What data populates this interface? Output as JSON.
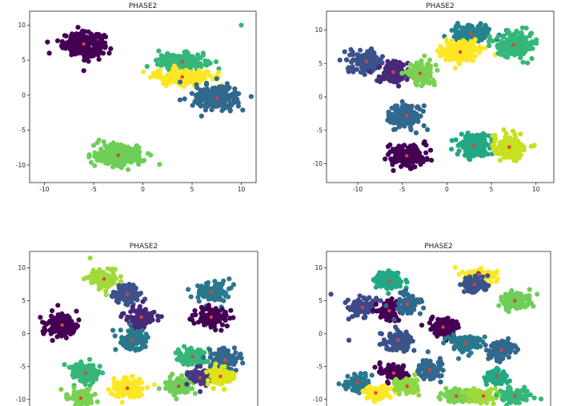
{
  "figure": {
    "colormap": "viridis",
    "background": "#ffffff",
    "centroid_color": "#e0403c"
  },
  "chart_data": [
    {
      "type": "scatter",
      "title": "PHASE2",
      "xlim": [
        -11.5,
        11.5
      ],
      "ylim": [
        -12.5,
        12.0
      ],
      "xticks": [
        -10,
        -5,
        0,
        5,
        10
      ],
      "yticks": [
        -10,
        -5,
        0,
        5,
        10
      ],
      "clusters": [
        {
          "center": [
            -6.0,
            7.3
          ],
          "spread": [
            1.7,
            1.3
          ],
          "color": "#440154",
          "n": 260
        },
        {
          "center": [
            4.0,
            4.8
          ],
          "spread": [
            2.0,
            0.9
          ],
          "color": "#35b779",
          "n": 180
        },
        {
          "center": [
            4.0,
            2.6
          ],
          "spread": [
            2.2,
            0.9
          ],
          "color": "#fde725",
          "n": 200
        },
        {
          "center": [
            7.5,
            -0.4
          ],
          "spread": [
            1.9,
            1.4
          ],
          "color": "#31688e",
          "n": 230
        },
        {
          "center": [
            -2.5,
            -8.6
          ],
          "spread": [
            2.0,
            1.2
          ],
          "color": "#6ece58",
          "n": 240
        }
      ],
      "outliers": [
        [
          10.0,
          10.0
        ],
        [
          -9.5,
          6.0
        ],
        [
          -6.0,
          3.5
        ],
        [
          11.0,
          -0.2
        ]
      ]
    },
    {
      "type": "scatter",
      "title": "PHASE2",
      "xlim": [
        -13.5,
        12.0
      ],
      "ylim": [
        -12.8,
        12.8
      ],
      "xticks": [
        -10,
        -5,
        0,
        5,
        10
      ],
      "yticks": [
        -10,
        -5,
        0,
        5,
        10
      ],
      "clusters": [
        {
          "center": [
            -9.0,
            5.3
          ],
          "spread": [
            1.5,
            1.3
          ],
          "color": "#3b528b",
          "n": 140
        },
        {
          "center": [
            -6.0,
            3.7
          ],
          "spread": [
            1.4,
            1.3
          ],
          "color": "#482878",
          "n": 140
        },
        {
          "center": [
            -3.0,
            3.5
          ],
          "spread": [
            1.3,
            1.3
          ],
          "color": "#7ad151",
          "n": 140
        },
        {
          "center": [
            2.7,
            9.5
          ],
          "spread": [
            1.7,
            1.1
          ],
          "color": "#26828e",
          "n": 150
        },
        {
          "center": [
            1.5,
            6.7
          ],
          "spread": [
            1.7,
            1.2
          ],
          "color": "#fde725",
          "n": 160
        },
        {
          "center": [
            7.5,
            7.8
          ],
          "spread": [
            1.8,
            1.5
          ],
          "color": "#35b779",
          "n": 160
        },
        {
          "center": [
            -4.5,
            -2.8
          ],
          "spread": [
            1.5,
            1.4
          ],
          "color": "#31688e",
          "n": 170
        },
        {
          "center": [
            -4.5,
            -8.8
          ],
          "spread": [
            1.6,
            1.3
          ],
          "color": "#440154",
          "n": 200
        },
        {
          "center": [
            3.0,
            -7.3
          ],
          "spread": [
            1.5,
            1.5
          ],
          "color": "#22a884",
          "n": 170
        },
        {
          "center": [
            7.0,
            -7.5
          ],
          "spread": [
            1.5,
            1.5
          ],
          "color": "#c8e020",
          "n": 170
        }
      ],
      "outliers": [
        [
          -6.0,
          -11.0
        ],
        [
          9.5,
          9.5
        ],
        [
          -12.0,
          5.5
        ]
      ]
    },
    {
      "type": "scatter",
      "title": "PHASE2",
      "xlim": [
        -12.0,
        12.5
      ],
      "ylim": [
        -11.0,
        12.5
      ],
      "xticks": [],
      "yticks": [
        -10,
        -5,
        0,
        5,
        10
      ],
      "clusters": [
        {
          "center": [
            -4.0,
            8.3
          ],
          "spread": [
            1.3,
            1.2
          ],
          "color": "#a0da39",
          "n": 110
        },
        {
          "center": [
            -1.5,
            6.0
          ],
          "spread": [
            1.2,
            1.2
          ],
          "color": "#3b528b",
          "n": 110
        },
        {
          "center": [
            -8.5,
            1.3
          ],
          "spread": [
            1.4,
            1.4
          ],
          "color": "#440154",
          "n": 150
        },
        {
          "center": [
            0.0,
            2.5
          ],
          "spread": [
            1.2,
            1.2
          ],
          "color": "#482878",
          "n": 110
        },
        {
          "center": [
            -1.0,
            -1.0
          ],
          "spread": [
            1.3,
            1.2
          ],
          "color": "#2a788e",
          "n": 110
        },
        {
          "center": [
            7.5,
            6.3
          ],
          "spread": [
            1.4,
            1.2
          ],
          "color": "#2a788e",
          "n": 110
        },
        {
          "center": [
            7.5,
            2.5
          ],
          "spread": [
            1.4,
            1.2
          ],
          "color": "#440154",
          "n": 110
        },
        {
          "center": [
            -6.0,
            -6.0
          ],
          "spread": [
            1.3,
            1.2
          ],
          "color": "#35b779",
          "n": 110
        },
        {
          "center": [
            -6.5,
            -9.8
          ],
          "spread": [
            1.3,
            1.0
          ],
          "color": "#7ad151",
          "n": 100
        },
        {
          "center": [
            -1.5,
            -8.3
          ],
          "spread": [
            1.4,
            1.2
          ],
          "color": "#fde725",
          "n": 130
        },
        {
          "center": [
            5.5,
            -3.5
          ],
          "spread": [
            1.2,
            1.2
          ],
          "color": "#35b779",
          "n": 110
        },
        {
          "center": [
            9.0,
            -4.0
          ],
          "spread": [
            1.2,
            1.2
          ],
          "color": "#31688e",
          "n": 110
        },
        {
          "center": [
            4.0,
            -8.0
          ],
          "spread": [
            1.2,
            1.2
          ],
          "color": "#6ece58",
          "n": 100
        },
        {
          "center": [
            6.3,
            -6.7
          ],
          "spread": [
            1.0,
            1.0
          ],
          "color": "#443983",
          "n": 80
        },
        {
          "center": [
            8.5,
            -6.5
          ],
          "spread": [
            1.2,
            1.1
          ],
          "color": "#dde318",
          "n": 100
        }
      ],
      "outliers": [
        [
          -10.5,
          0.0
        ],
        [
          -5.5,
          11.5
        ]
      ]
    },
    {
      "type": "scatter",
      "title": "PHASE2",
      "xlim": [
        -12.5,
        12.5
      ],
      "ylim": [
        -11.0,
        12.5
      ],
      "xticks": [],
      "yticks": [
        -10,
        -5,
        0,
        5,
        10
      ],
      "clusters": [
        {
          "center": [
            -5.5,
            8.0
          ],
          "spread": [
            1.3,
            1.2
          ],
          "color": "#22a884",
          "n": 110
        },
        {
          "center": [
            4.5,
            9.0
          ],
          "spread": [
            1.5,
            0.8
          ],
          "color": "#fde725",
          "n": 100
        },
        {
          "center": [
            4.0,
            7.5
          ],
          "spread": [
            1.3,
            1.0
          ],
          "color": "#3b528b",
          "n": 100
        },
        {
          "center": [
            8.5,
            5.0
          ],
          "spread": [
            1.3,
            1.2
          ],
          "color": "#6ece58",
          "n": 110
        },
        {
          "center": [
            -8.5,
            4.0
          ],
          "spread": [
            1.3,
            1.2
          ],
          "color": "#3e4989",
          "n": 110
        },
        {
          "center": [
            -5.5,
            3.5
          ],
          "spread": [
            1.0,
            1.1
          ],
          "color": "#440154",
          "n": 90
        },
        {
          "center": [
            -3.5,
            4.5
          ],
          "spread": [
            1.2,
            1.2
          ],
          "color": "#31688e",
          "n": 100
        },
        {
          "center": [
            0.5,
            1.0
          ],
          "spread": [
            1.2,
            1.2
          ],
          "color": "#440154",
          "n": 100
        },
        {
          "center": [
            -4.5,
            -1.0
          ],
          "spread": [
            1.4,
            1.2
          ],
          "color": "#3b528b",
          "n": 110
        },
        {
          "center": [
            3.0,
            -1.5
          ],
          "spread": [
            1.4,
            1.2
          ],
          "color": "#2a788e",
          "n": 110
        },
        {
          "center": [
            7.0,
            -2.5
          ],
          "spread": [
            1.3,
            1.2
          ],
          "color": "#31688e",
          "n": 100
        },
        {
          "center": [
            -1.0,
            -5.5
          ],
          "spread": [
            1.2,
            1.2
          ],
          "color": "#31688e",
          "n": 100
        },
        {
          "center": [
            -5.0,
            -6.0
          ],
          "spread": [
            1.2,
            1.0
          ],
          "color": "#440154",
          "n": 100
        },
        {
          "center": [
            -9.0,
            -7.5
          ],
          "spread": [
            1.1,
            1.1
          ],
          "color": "#2a788e",
          "n": 90
        },
        {
          "center": [
            -7.0,
            -9.0
          ],
          "spread": [
            1.2,
            0.9
          ],
          "color": "#fde725",
          "n": 90
        },
        {
          "center": [
            -3.5,
            -8.0
          ],
          "spread": [
            1.1,
            1.0
          ],
          "color": "#8fd744",
          "n": 90
        },
        {
          "center": [
            2.0,
            -9.5
          ],
          "spread": [
            1.3,
            0.9
          ],
          "color": "#7ad151",
          "n": 90
        },
        {
          "center": [
            5.0,
            -9.5
          ],
          "spread": [
            1.3,
            0.9
          ],
          "color": "#a0da39",
          "n": 90
        },
        {
          "center": [
            8.5,
            -9.5
          ],
          "spread": [
            1.3,
            0.9
          ],
          "color": "#35b779",
          "n": 90
        },
        {
          "center": [
            6.5,
            -6.5
          ],
          "spread": [
            1.0,
            1.0
          ],
          "color": "#22a884",
          "n": 80
        }
      ],
      "outliers": [
        [
          -12.0,
          6.0
        ],
        [
          11.0,
          6.0
        ],
        [
          -10.0,
          -1.0
        ]
      ]
    }
  ]
}
